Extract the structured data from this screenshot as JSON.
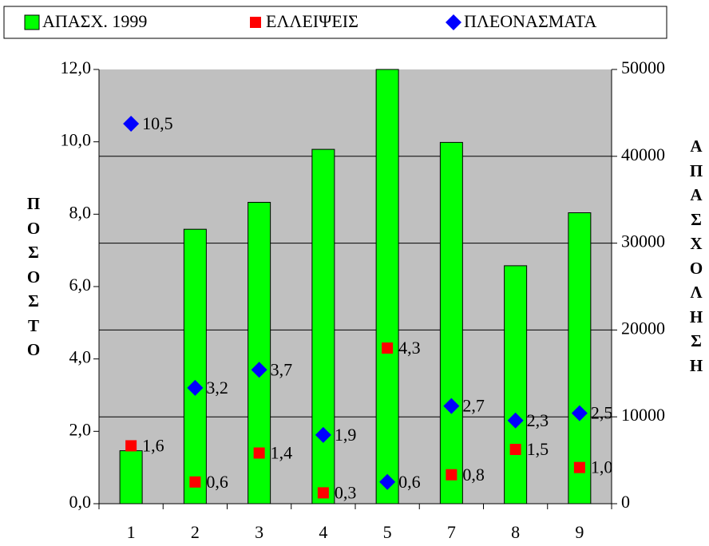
{
  "chart_data": {
    "type": "bar",
    "categories": [
      "1",
      "2",
      "3",
      "4",
      "5",
      "7",
      "8",
      "9"
    ],
    "y_label": "ΠΟΣΟΣΤΟ",
    "y2_label": "ΑΠΑΣΧΟΛΗΣΗ",
    "series": [
      {
        "name": "ΑΠΑΣΧ. 1999",
        "type": "bar",
        "axis": "y2",
        "color": "#00ff00",
        "values": [
          6100,
          31600,
          34700,
          40800,
          50000,
          41600,
          27400,
          33500
        ]
      },
      {
        "name": "ΕΛΛΕΙΨΕΙΣ",
        "type": "square",
        "color": "#ff0000",
        "values": [
          1.6,
          0.6,
          1.4,
          0.3,
          4.3,
          0.8,
          1.5,
          1.0
        ],
        "value_labels": [
          "1,6",
          "0,6",
          "1,4",
          "0,3",
          "4,3",
          "0,8",
          "1,5",
          "1,0"
        ]
      },
      {
        "name": "ΠΛΕΟΝΑΣΜΑΤΑ",
        "type": "diamond",
        "color": "#0000ff",
        "values": [
          10.5,
          3.2,
          3.7,
          1.9,
          0.6,
          2.7,
          2.3,
          2.5
        ],
        "value_labels": [
          "10,5",
          "3,2",
          "3,7",
          "1,9",
          "0,6",
          "2,7",
          "2,3",
          "2,5"
        ]
      }
    ],
    "ylim": [
      0,
      12
    ],
    "yticks": [
      {
        "value": 0,
        "label": "0,0"
      },
      {
        "value": 2,
        "label": "2,0"
      },
      {
        "value": 4,
        "label": "4,0"
      },
      {
        "value": 6,
        "label": "6,0"
      },
      {
        "value": 8,
        "label": "8,0"
      },
      {
        "value": 10,
        "label": "10,0"
      },
      {
        "value": 12,
        "label": "12,0"
      }
    ],
    "y2lim": [
      0,
      50000
    ],
    "y2ticks": [
      0,
      10000,
      20000,
      30000,
      40000,
      50000
    ],
    "grid": true,
    "legend": "top"
  }
}
